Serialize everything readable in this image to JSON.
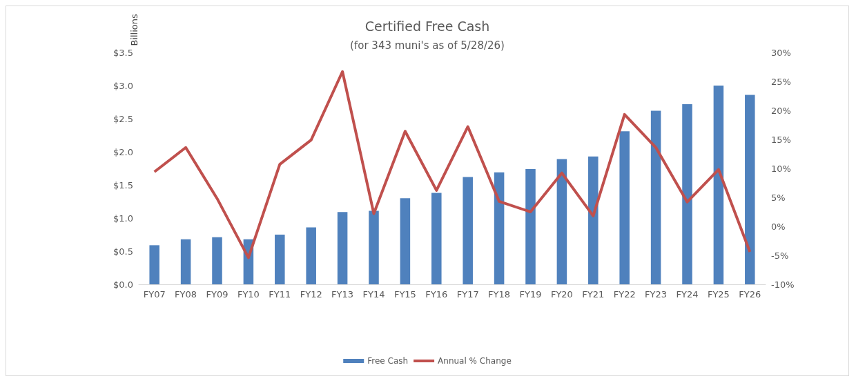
{
  "chart_data": {
    "type": "bar",
    "title": "Certified Free Cash",
    "subtitle": "(for 343 muni's as of 5/28/26)",
    "ylabel": "Billions",
    "categories": [
      "FY07",
      "FY08",
      "FY09",
      "FY10",
      "FY11",
      "FY12",
      "FY13",
      "FY14",
      "FY15",
      "FY16",
      "FY17",
      "FY18",
      "FY19",
      "FY20",
      "FY21",
      "FY22",
      "FY23",
      "FY24",
      "FY25",
      "FY26"
    ],
    "series": [
      {
        "name": "Free Cash",
        "color": "#4f81bd",
        "values": [
          0.59,
          0.68,
          0.71,
          0.68,
          0.75,
          0.86,
          1.09,
          1.11,
          1.3,
          1.38,
          1.62,
          1.69,
          1.74,
          1.89,
          1.93,
          2.31,
          2.62,
          2.72,
          3.0,
          2.86
        ]
      },
      {
        "name": "Annual % Change",
        "type": "line",
        "axis": "y2",
        "color": "#c0504d",
        "marker": "none",
        "values": [
          9.4,
          13.6,
          4.8,
          -5.4,
          10.7,
          14.9,
          26.7,
          2.2,
          16.4,
          6.2,
          17.2,
          4.3,
          2.5,
          9.2,
          1.8,
          19.3,
          13.6,
          4.2,
          9.8,
          -4.4
        ]
      }
    ],
    "ylim": [
      0,
      3.5
    ],
    "yticks": [
      {
        "value": 0,
        "label": "$0.0"
      },
      {
        "value": 0.5,
        "label": "$0.5"
      },
      {
        "value": 1,
        "label": "$1.0"
      },
      {
        "value": 1.5,
        "label": "$1.5"
      },
      {
        "value": 2,
        "label": "$2.0"
      },
      {
        "value": 2.5,
        "label": "$2.5"
      },
      {
        "value": 3,
        "label": "$3.0"
      },
      {
        "value": 3.5,
        "label": "$3.5"
      }
    ],
    "y2lim": [
      -10,
      30
    ],
    "y2ticks": [
      {
        "value": -10,
        "label": "-10%"
      },
      {
        "value": -5,
        "label": "-5%"
      },
      {
        "value": 0,
        "label": "0%"
      },
      {
        "value": 5,
        "label": "5%"
      },
      {
        "value": 10,
        "label": "10%"
      },
      {
        "value": 15,
        "label": "15%"
      },
      {
        "value": 20,
        "label": "20%"
      },
      {
        "value": 25,
        "label": "25%"
      },
      {
        "value": 30,
        "label": "30%"
      }
    ],
    "grid": false,
    "legend": "bottom"
  }
}
